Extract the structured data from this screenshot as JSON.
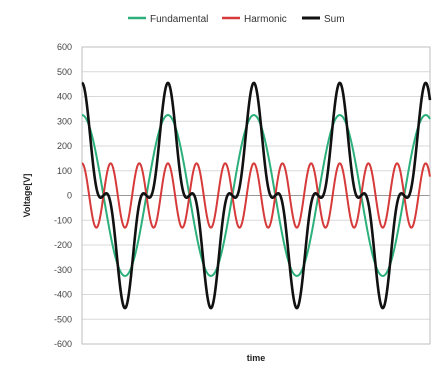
{
  "chart_data": {
    "type": "line",
    "title": "",
    "xlabel": "time",
    "ylabel": "Voltage[V]",
    "ylim": [
      -600,
      600
    ],
    "y_ticks": [
      600,
      500,
      400,
      300,
      200,
      100,
      0,
      -100,
      -200,
      -300,
      -400,
      -500,
      -600
    ],
    "xlim": [
      0,
      4.05
    ],
    "x_unit": "fundamental cycles",
    "grid": true,
    "legend_position": "top",
    "legend_entries": [
      "Fundamental",
      "Harmonic",
      "Sum"
    ],
    "series": [
      {
        "name": "Fundamental",
        "color": "#2bb07b",
        "function": "325*cos(2*pi*t)",
        "amplitude": 325,
        "cycles_shown": 4.05,
        "x": [
          0,
          0.25,
          0.5,
          0.75,
          1,
          1.25,
          1.5,
          1.75,
          2,
          2.25,
          2.5,
          2.75,
          3,
          3.25,
          3.5,
          3.75,
          4
        ],
        "values": [
          325,
          0,
          -325,
          0,
          325,
          0,
          -325,
          0,
          325,
          0,
          -325,
          0,
          325,
          0,
          -325,
          0,
          325
        ]
      },
      {
        "name": "Harmonic",
        "color": "#d63a3a",
        "function": "130*cos(3*2*pi*t)",
        "amplitude": 130,
        "harmonic_order": 3,
        "x": [
          0,
          0.1667,
          0.3333,
          0.5,
          0.6667,
          0.8333,
          1
        ],
        "values": [
          130,
          -130,
          130,
          -130,
          130,
          -130,
          130
        ]
      },
      {
        "name": "Sum",
        "color": "#111111",
        "function": "Fundamental + Harmonic",
        "x": [
          0,
          0.25,
          0.5,
          1,
          1.5,
          2,
          2.5,
          3,
          3.5,
          4
        ],
        "values": [
          455,
          0,
          -455,
          455,
          -455,
          455,
          -455,
          455,
          -455,
          455
        ]
      }
    ]
  }
}
